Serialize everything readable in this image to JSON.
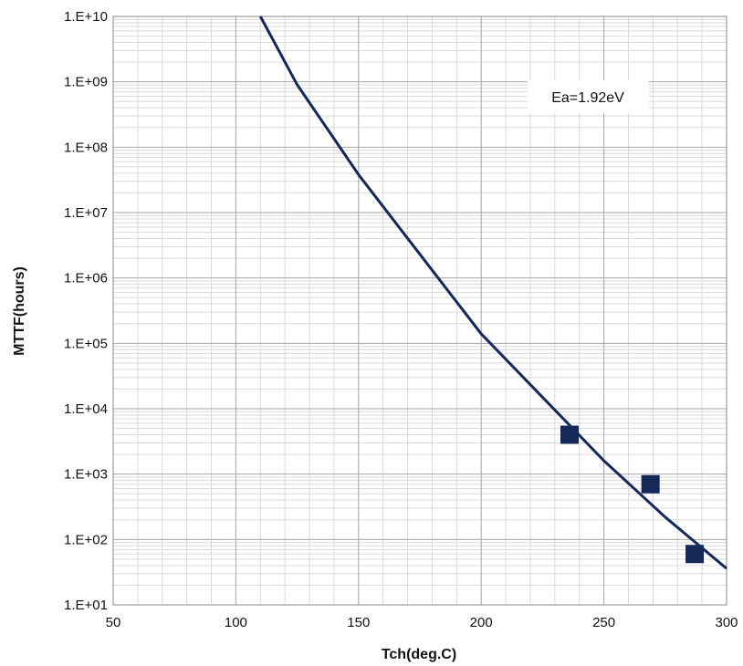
{
  "chart_data": {
    "type": "line",
    "title": "",
    "xlabel": "Tch(deg.C)",
    "ylabel": "MTTF(hours)",
    "xlim": [
      50,
      300
    ],
    "ylim": [
      10,
      10000000000
    ],
    "y_scale": "log",
    "grid": true,
    "x_ticks": [
      50,
      100,
      150,
      200,
      250,
      300
    ],
    "x_tick_labels": [
      "50",
      "100",
      "150",
      "200",
      "250",
      "300"
    ],
    "y_ticks": [
      10,
      100,
      1000,
      10000,
      100000,
      1000000,
      10000000,
      100000000,
      1000000000,
      10000000000
    ],
    "y_tick_labels": [
      "1.E+01",
      "1.E+02",
      "1.E+03",
      "1.E+04",
      "1.E+05",
      "1.E+06",
      "1.E+07",
      "1.E+08",
      "1.E+09",
      "1.E+10"
    ],
    "annotation": "Ea=1.92eV",
    "series": [
      {
        "kind": "line",
        "color": "#14285a",
        "x": [
          110,
          125,
          150,
          175,
          200,
          225,
          250,
          275,
          300
        ],
        "y": [
          10000000000,
          900000000,
          38000000,
          2300000,
          140000,
          15000,
          1600,
          220,
          36
        ]
      },
      {
        "kind": "marker",
        "marker": "square",
        "color": "#14285a",
        "x": [
          236,
          269,
          287
        ],
        "y": [
          4000,
          700,
          60
        ]
      }
    ]
  }
}
